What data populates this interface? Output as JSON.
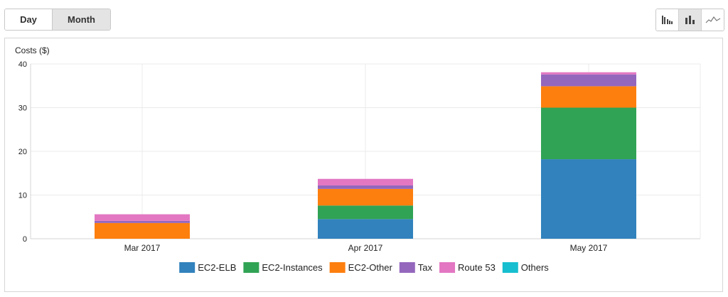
{
  "controls": {
    "period_buttons": [
      {
        "label": "Day",
        "selected": false
      },
      {
        "label": "Month",
        "selected": true
      }
    ],
    "chart_type_buttons": [
      {
        "icon": "bar-chart-grouped-icon",
        "selected": false
      },
      {
        "icon": "bar-chart-stacked-icon",
        "selected": true
      },
      {
        "icon": "line-chart-icon",
        "selected": false
      }
    ]
  },
  "colors": {
    "EC2-ELB": "#3182bd",
    "EC2-Instances": "#31a354",
    "EC2-Other": "#fd7f0e",
    "Tax": "#9467bd",
    "Route 53": "#e377c2",
    "Others": "#17becf"
  },
  "chart_data": {
    "type": "bar",
    "stacked": true,
    "ylabel": "Costs ($)",
    "ylim": [
      0,
      40
    ],
    "yticks": [
      0,
      10,
      20,
      30,
      40
    ],
    "grid": true,
    "legend_position": "bottom",
    "categories": [
      "Mar 2017",
      "Apr 2017",
      "May 2017"
    ],
    "series": [
      {
        "name": "EC2-ELB",
        "values": [
          0,
          4.5,
          18.2
        ]
      },
      {
        "name": "EC2-Instances",
        "values": [
          0,
          3.1,
          11.8
        ]
      },
      {
        "name": "EC2-Other",
        "values": [
          3.6,
          3.8,
          4.9
        ]
      },
      {
        "name": "Tax",
        "values": [
          0.5,
          0.8,
          2.7
        ]
      },
      {
        "name": "Route 53",
        "values": [
          1.5,
          1.5,
          0.5
        ]
      },
      {
        "name": "Others",
        "values": [
          0,
          0,
          0
        ]
      }
    ]
  }
}
